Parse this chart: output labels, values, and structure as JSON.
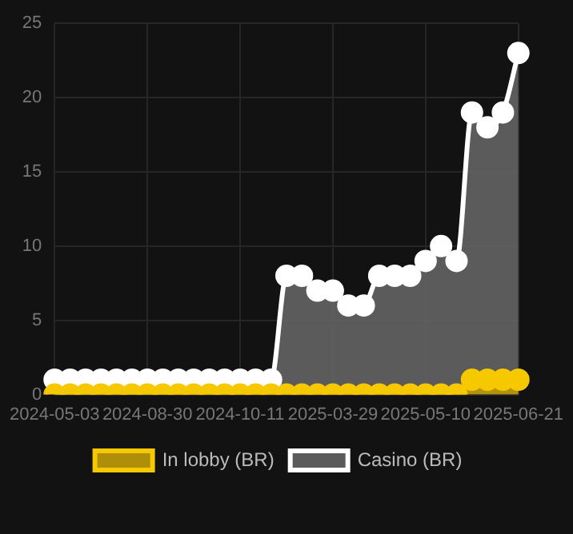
{
  "chart_data": {
    "type": "area",
    "categories": [
      "2024-05-03",
      null,
      null,
      null,
      null,
      null,
      "2024-08-30",
      null,
      null,
      null,
      null,
      null,
      "2024-10-11",
      null,
      null,
      null,
      null,
      null,
      "2025-03-29",
      null,
      null,
      null,
      null,
      null,
      "2025-05-10",
      null,
      null,
      null,
      null,
      null,
      "2025-06-21"
    ],
    "series": [
      {
        "name": "In lobby (BR)",
        "color": "#f5c800",
        "values": [
          0,
          0,
          0,
          0,
          0,
          0,
          0,
          0,
          0,
          0,
          0,
          0,
          0,
          0,
          0,
          0,
          0,
          0,
          0,
          0,
          0,
          0,
          0,
          0,
          0,
          0,
          0,
          1,
          1,
          1,
          1
        ]
      },
      {
        "name": "Casino (BR)",
        "color": "#ffffff",
        "values": [
          1,
          1,
          1,
          1,
          1,
          1,
          1,
          1,
          1,
          1,
          1,
          1,
          1,
          1,
          1,
          8,
          8,
          7,
          7,
          6,
          6,
          8,
          8,
          8,
          9,
          10,
          9,
          19,
          18,
          19,
          23
        ]
      }
    ],
    "ylim": [
      0,
      25
    ],
    "yticks": [
      0,
      5,
      10,
      15,
      20,
      25
    ],
    "grid": true,
    "legend": "bottom",
    "marker": "circle"
  }
}
